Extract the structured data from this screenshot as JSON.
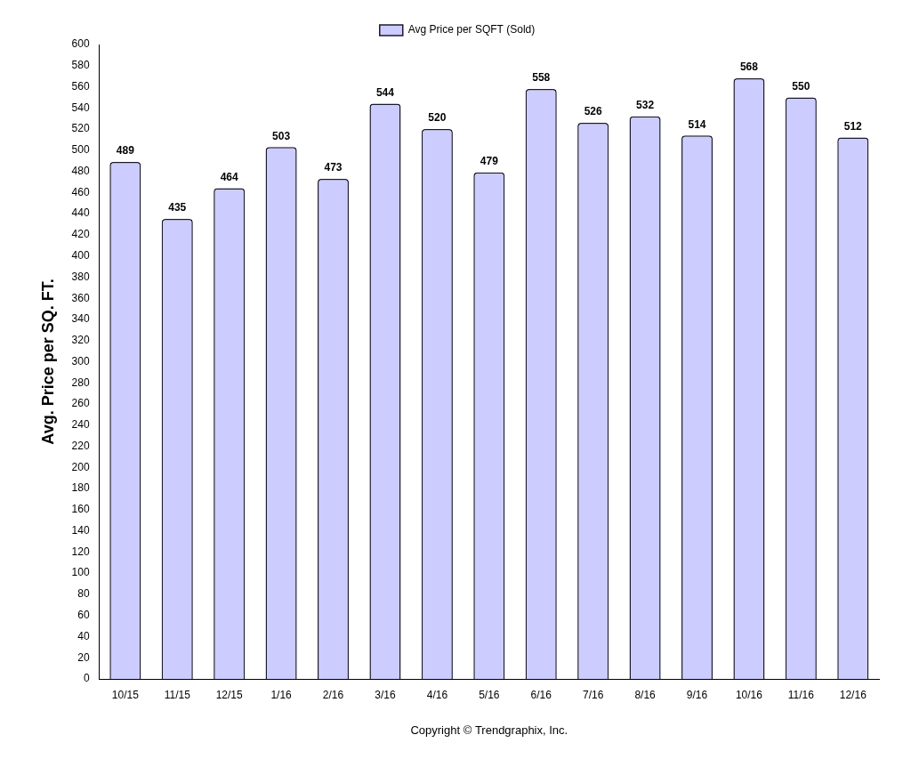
{
  "chart_data": {
    "type": "bar",
    "categories": [
      "10/15",
      "11/15",
      "12/15",
      "1/16",
      "2/16",
      "3/16",
      "4/16",
      "5/16",
      "6/16",
      "7/16",
      "8/16",
      "9/16",
      "10/16",
      "11/16",
      "12/16"
    ],
    "series": [
      {
        "name": "Avg Price per SQFT (Sold)",
        "color": "#ccccff",
        "values": [
          489,
          435,
          464,
          503,
          473,
          544,
          520,
          479,
          558,
          526,
          532,
          514,
          568,
          550,
          512
        ]
      }
    ],
    "ylabel": "Avg. Price per SQ. FT.",
    "annotations": [
      "Copyright © Trendgraphix, Inc."
    ],
    "ylim": [
      0,
      600
    ],
    "yticks": [
      0,
      20,
      40,
      60,
      80,
      100,
      120,
      140,
      160,
      180,
      200,
      220,
      240,
      260,
      280,
      300,
      320,
      340,
      360,
      380,
      400,
      420,
      440,
      460,
      480,
      500,
      520,
      540,
      560,
      580,
      600
    ],
    "grid": false,
    "legend": "top",
    "data_labels": true
  }
}
